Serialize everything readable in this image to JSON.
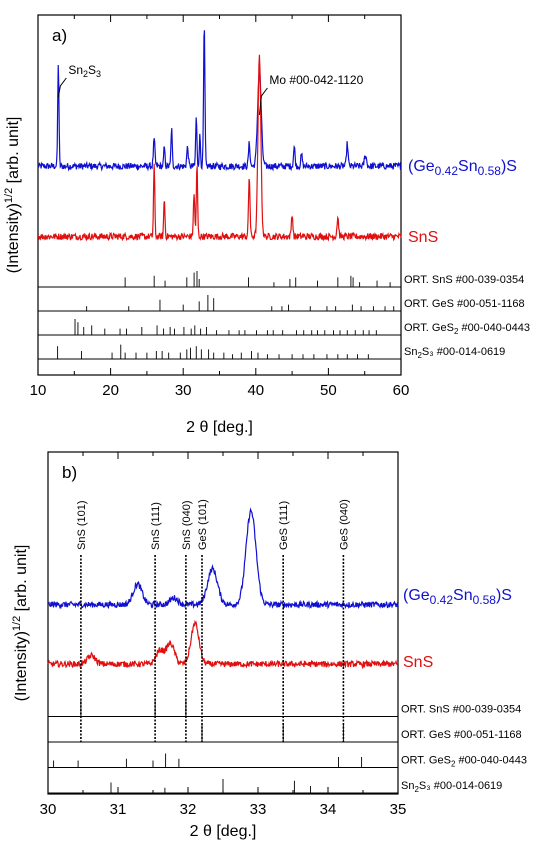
{
  "chart_data": [
    {
      "type": "line",
      "panel_label": "a)",
      "xlabel": "2 θ [deg.]",
      "ylabel": "(Intensity)^1/2 [arb. unit]",
      "ylabel_main": "(Intensity)",
      "ylabel_sup": "1/2",
      "ylabel_unit": "[arb. unit]",
      "xlim": [
        10,
        60
      ],
      "xticks": [
        "10",
        "20",
        "30",
        "40",
        "50",
        "60"
      ],
      "series": [
        {
          "name": "(Ge0.42Sn0.58)S",
          "label_parts": {
            "pre": "(Ge",
            "sub1": "0.42",
            "mid": "Sn",
            "sub2": "0.58",
            "post": ")S"
          },
          "color": "#1010d0",
          "baseline": 0.52,
          "peaks": [
            [
              12.8,
              0.55,
              0.12
            ],
            [
              26.0,
              0.14,
              0.15
            ],
            [
              27.4,
              0.1,
              0.12
            ],
            [
              28.4,
              0.2,
              0.12
            ],
            [
              30.6,
              0.1,
              0.15
            ],
            [
              31.8,
              0.26,
              0.12
            ],
            [
              32.3,
              0.16,
              0.12
            ],
            [
              32.9,
              0.74,
              0.13
            ],
            [
              39.1,
              0.12,
              0.15
            ],
            [
              40.5,
              0.5,
              0.35
            ],
            [
              45.3,
              0.1,
              0.15
            ],
            [
              46.3,
              0.06,
              0.15
            ],
            [
              52.6,
              0.12,
              0.15
            ],
            [
              55.1,
              0.06,
              0.2
            ]
          ]
        },
        {
          "name": "SnS",
          "color": "#e01010",
          "baseline": 0.15,
          "peaks": [
            [
              26.0,
              0.38,
              0.12
            ],
            [
              27.4,
              0.2,
              0.12
            ],
            [
              31.5,
              0.22,
              0.14
            ],
            [
              31.9,
              0.38,
              0.12
            ],
            [
              39.1,
              0.32,
              0.14
            ],
            [
              40.5,
              0.95,
              0.28
            ],
            [
              45.0,
              0.12,
              0.14
            ],
            [
              51.3,
              0.1,
              0.16
            ]
          ]
        }
      ],
      "reference_patterns": [
        {
          "name": "ORT. SnS #00-039-0354",
          "label_parts": {
            "pre": "ORT. SnS #00-039-0354",
            "sub": "",
            "post": ""
          },
          "lines": [
            [
              22.0,
              0.6
            ],
            [
              26.0,
              0.7
            ],
            [
              27.5,
              0.4
            ],
            [
              30.5,
              0.6
            ],
            [
              31.5,
              0.9
            ],
            [
              31.9,
              1.0
            ],
            [
              32.2,
              0.5
            ],
            [
              39.0,
              0.6
            ],
            [
              42.5,
              0.3
            ],
            [
              44.7,
              0.5
            ],
            [
              45.5,
              0.6
            ],
            [
              48.5,
              0.4
            ],
            [
              51.3,
              0.6
            ],
            [
              53.1,
              0.7
            ],
            [
              53.4,
              0.6
            ],
            [
              54.3,
              0.3
            ],
            [
              56.7,
              0.4
            ],
            [
              58.5,
              0.3
            ]
          ]
        },
        {
          "name": "ORT. GeS #00-051-1168",
          "label_parts": {
            "pre": "ORT. GeS #00-051-1168",
            "sub": "",
            "post": ""
          },
          "lines": [
            [
              16.7,
              0.3
            ],
            [
              22.5,
              0.3
            ],
            [
              26.8,
              0.7
            ],
            [
              30.0,
              0.4
            ],
            [
              32.2,
              0.6
            ],
            [
              33.4,
              1.0
            ],
            [
              34.2,
              0.8
            ],
            [
              42.2,
              0.3
            ],
            [
              43.6,
              0.3
            ],
            [
              44.5,
              0.4
            ],
            [
              47.5,
              0.3
            ],
            [
              49.8,
              0.3
            ],
            [
              51.0,
              0.3
            ],
            [
              53.3,
              0.4
            ],
            [
              54.5,
              0.3
            ],
            [
              56.2,
              0.3
            ],
            [
              57.8,
              0.3
            ],
            [
              59.0,
              0.3
            ]
          ]
        },
        {
          "name": "ORT. GeS2 #00-040-0443",
          "label_parts": {
            "pre": "ORT. GeS",
            "sub": "2",
            "post": " #00-040-0443"
          },
          "lines": [
            [
              15.1,
              1.0
            ],
            [
              15.5,
              0.8
            ],
            [
              16.3,
              0.5
            ],
            [
              17.4,
              0.6
            ],
            [
              19.2,
              0.4
            ],
            [
              21.3,
              0.4
            ],
            [
              22.2,
              0.4
            ],
            [
              24.3,
              0.5
            ],
            [
              26.4,
              0.6
            ],
            [
              27.3,
              0.4
            ],
            [
              28.2,
              0.5
            ],
            [
              28.8,
              0.4
            ],
            [
              30.1,
              0.5
            ],
            [
              31.1,
              0.4
            ],
            [
              31.6,
              0.6
            ],
            [
              32.4,
              0.4
            ],
            [
              33.2,
              0.5
            ],
            [
              34.6,
              0.3
            ],
            [
              36.3,
              0.3
            ],
            [
              37.7,
              0.3
            ],
            [
              38.5,
              0.3
            ],
            [
              40.1,
              0.3
            ],
            [
              41.6,
              0.3
            ],
            [
              42.4,
              0.3
            ],
            [
              43.7,
              0.3
            ],
            [
              45.6,
              0.3
            ],
            [
              46.6,
              0.3
            ],
            [
              47.7,
              0.3
            ],
            [
              48.5,
              0.3
            ],
            [
              49.5,
              0.3
            ],
            [
              50.7,
              0.3
            ],
            [
              51.6,
              0.3
            ],
            [
              52.6,
              0.3
            ],
            [
              53.7,
              0.3
            ],
            [
              54.8,
              0.3
            ],
            [
              55.6,
              0.3
            ],
            [
              56.6,
              0.3
            ]
          ]
        },
        {
          "name": "Sn2S3 #00-014-0619",
          "label_parts": {
            "pre": "Sn",
            "sub": "2",
            "post": "S₃ #00-014-0619"
          },
          "lines": [
            [
              12.7,
              0.8
            ],
            [
              16.0,
              0.5
            ],
            [
              20.2,
              0.4
            ],
            [
              21.4,
              0.9
            ],
            [
              22.0,
              0.4
            ],
            [
              23.5,
              0.4
            ],
            [
              25.0,
              0.4
            ],
            [
              26.3,
              0.5
            ],
            [
              27.1,
              0.5
            ],
            [
              28.0,
              0.4
            ],
            [
              29.6,
              0.4
            ],
            [
              30.5,
              0.6
            ],
            [
              31.0,
              0.7
            ],
            [
              31.8,
              0.8
            ],
            [
              32.5,
              0.6
            ],
            [
              33.5,
              0.6
            ],
            [
              34.2,
              0.4
            ],
            [
              35.6,
              0.4
            ],
            [
              36.8,
              0.3
            ],
            [
              38.0,
              0.4
            ],
            [
              39.4,
              0.5
            ],
            [
              40.3,
              0.4
            ],
            [
              41.6,
              0.3
            ],
            [
              43.2,
              0.3
            ],
            [
              45.0,
              0.3
            ],
            [
              46.5,
              0.3
            ],
            [
              48.0,
              0.3
            ],
            [
              49.8,
              0.3
            ],
            [
              51.3,
              0.3
            ],
            [
              52.6,
              0.3
            ],
            [
              54.0,
              0.3
            ],
            [
              55.5,
              0.3
            ]
          ]
        }
      ],
      "annotations": [
        {
          "label": "Sn₂S₃",
          "label_parts": {
            "pre": "Sn",
            "sub": "2",
            "post": "S",
            "sub2": "3"
          },
          "x": 12.8
        },
        {
          "label": "Mo #00-042-1120",
          "x": 40.5
        }
      ]
    },
    {
      "type": "line",
      "panel_label": "b)",
      "xlabel": "2 θ [deg.]",
      "ylabel": "(Intensity)^1/2 [arb. unit]",
      "ylabel_main": "(Intensity)",
      "ylabel_sup": "1/2",
      "ylabel_unit": "[arb. unit]",
      "xlim": [
        30,
        35
      ],
      "xticks": [
        "30",
        "31",
        "32",
        "33",
        "34",
        "35"
      ],
      "series": [
        {
          "name": "(Ge0.42Sn0.58)S",
          "label_parts": {
            "pre": "(Ge",
            "sub1": "0.42",
            "mid": "Sn",
            "sub2": "0.58",
            "post": ")S"
          },
          "color": "#1010d0",
          "baseline": 0.52,
          "peaks": [
            [
              31.28,
              0.12,
              0.09
            ],
            [
              31.8,
              0.04,
              0.08
            ],
            [
              32.35,
              0.21,
              0.1
            ],
            [
              32.9,
              0.55,
              0.1
            ]
          ]
        },
        {
          "name": "SnS",
          "color": "#e01010",
          "baseline": 0.17,
          "peaks": [
            [
              30.62,
              0.05,
              0.08
            ],
            [
              31.6,
              0.08,
              0.08
            ],
            [
              31.75,
              0.12,
              0.08
            ],
            [
              32.1,
              0.24,
              0.08
            ]
          ]
        }
      ],
      "reference_patterns": [
        {
          "name": "ORT. SnS #00-039-0354",
          "label_parts": {
            "pre": "ORT. SnS #00-039-0354",
            "sub": "",
            "post": ""
          },
          "lines": [
            [
              30.47,
              1.0
            ],
            [
              31.53,
              1.0
            ],
            [
              31.97,
              1.0
            ]
          ]
        },
        {
          "name": "ORT. GeS #00-051-1168",
          "label_parts": {
            "pre": "ORT. GeS #00-051-1168",
            "sub": "",
            "post": ""
          },
          "lines": [
            [
              32.2,
              1.0
            ],
            [
              33.36,
              1.0
            ],
            [
              34.22,
              1.0
            ]
          ]
        },
        {
          "name": "ORT. GeS2 #00-040-0443",
          "label_parts": {
            "pre": "ORT. GeS",
            "sub": "2",
            "post": " #00-040-0443"
          },
          "lines": [
            [
              30.08,
              0.4
            ],
            [
              30.43,
              0.4
            ],
            [
              31.12,
              0.5
            ],
            [
              31.5,
              0.4
            ],
            [
              31.68,
              0.8
            ],
            [
              31.87,
              0.5
            ],
            [
              34.15,
              0.6
            ],
            [
              34.48,
              0.6
            ]
          ]
        },
        {
          "name": "Sn2S3 #00-014-0619",
          "label_parts": {
            "pre": "Sn",
            "sub": "2",
            "post": "S₃ #00-014-0619"
          },
          "lines": [
            [
              30.9,
              0.6
            ],
            [
              31.67,
              0.3
            ],
            [
              32.5,
              0.8
            ],
            [
              33.52,
              0.7
            ],
            [
              33.75,
              0.4
            ]
          ]
        }
      ],
      "marker_lines": [
        {
          "label": "SnS (101)",
          "x": 30.47
        },
        {
          "label": "SnS (111)",
          "x": 31.53
        },
        {
          "label": "SnS (040)",
          "x": 31.97
        },
        {
          "label": "GeS (101)",
          "x": 32.2
        },
        {
          "label": "GeS (111)",
          "x": 33.36
        },
        {
          "label": "GeS (040)",
          "x": 34.22
        }
      ]
    }
  ]
}
